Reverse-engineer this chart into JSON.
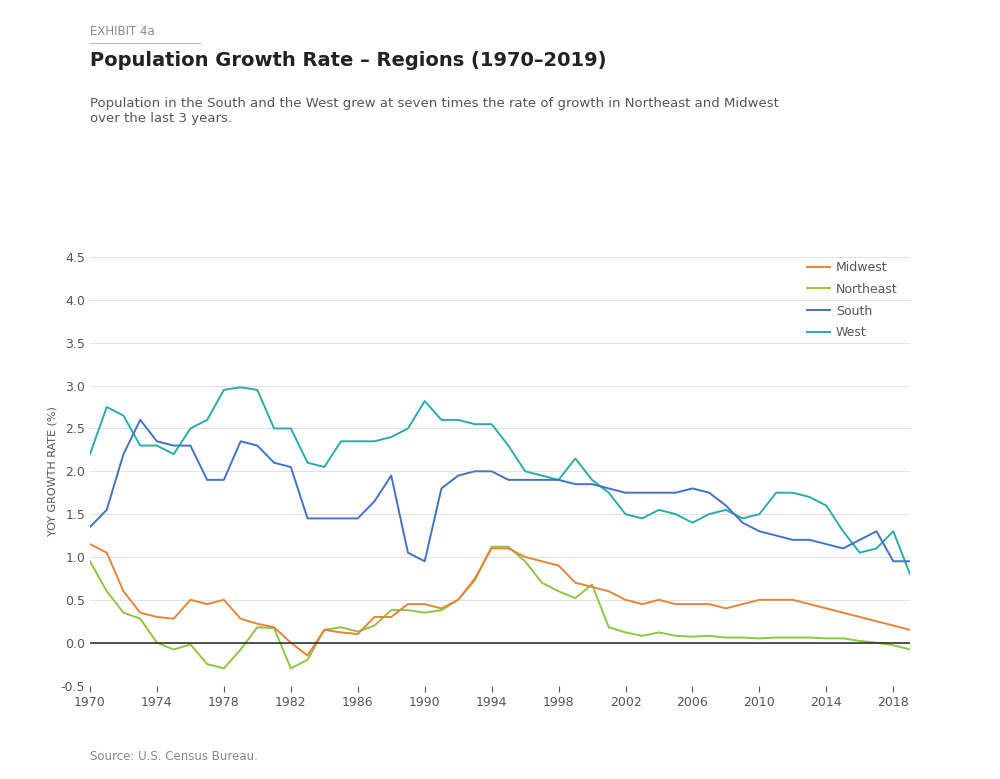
{
  "title": "Population Growth Rate – Regions (1970–2019)",
  "exhibit_label": "EXHIBIT 4a",
  "subtitle": "Population in the South and the West grew at seven times the rate of growth in Northeast and Midwest\nover the last 3 years.",
  "source": "Source: U.S. Census Bureau.",
  "ylabel": "YOY GROWTH RATE (%)",
  "ylim": [
    -0.5,
    4.5
  ],
  "yticks": [
    -0.5,
    0.0,
    0.5,
    1.0,
    1.5,
    2.0,
    2.5,
    3.0,
    3.5,
    4.0,
    4.5
  ],
  "xtick_years": [
    1970,
    1974,
    1978,
    1982,
    1986,
    1990,
    1994,
    1998,
    2002,
    2006,
    2010,
    2014,
    2018
  ],
  "background_color": "#ffffff",
  "years": [
    1970,
    1971,
    1972,
    1973,
    1974,
    1975,
    1976,
    1977,
    1978,
    1979,
    1980,
    1981,
    1982,
    1983,
    1984,
    1985,
    1986,
    1987,
    1988,
    1989,
    1990,
    1991,
    1992,
    1993,
    1994,
    1995,
    1996,
    1997,
    1998,
    1999,
    2000,
    2001,
    2002,
    2003,
    2004,
    2005,
    2006,
    2007,
    2008,
    2009,
    2010,
    2011,
    2012,
    2013,
    2014,
    2015,
    2016,
    2017,
    2018,
    2019
  ],
  "midwest": [
    1.15,
    1.05,
    0.6,
    0.35,
    0.3,
    0.28,
    0.5,
    0.45,
    0.5,
    0.28,
    0.22,
    0.18,
    0.0,
    -0.15,
    0.15,
    0.12,
    0.1,
    0.3,
    0.3,
    0.45,
    0.45,
    0.4,
    0.5,
    0.75,
    1.1,
    1.1,
    1.0,
    0.95,
    0.9,
    0.7,
    0.65,
    0.6,
    0.5,
    0.45,
    0.5,
    0.45,
    0.45,
    0.45,
    0.4,
    0.45,
    0.5,
    0.5,
    0.5,
    0.45,
    0.4,
    0.35,
    0.3,
    0.25,
    0.2,
    0.15
  ],
  "northeast": [
    0.95,
    0.6,
    0.35,
    0.28,
    0.0,
    -0.08,
    -0.02,
    -0.25,
    -0.3,
    -0.08,
    0.18,
    0.17,
    -0.3,
    -0.2,
    0.15,
    0.18,
    0.13,
    0.2,
    0.38,
    0.38,
    0.35,
    0.38,
    0.5,
    0.73,
    1.12,
    1.12,
    0.95,
    0.7,
    0.6,
    0.52,
    0.68,
    0.18,
    0.12,
    0.08,
    0.12,
    0.08,
    0.07,
    0.08,
    0.06,
    0.06,
    0.05,
    0.06,
    0.06,
    0.06,
    0.05,
    0.05,
    0.02,
    0.0,
    -0.03,
    -0.08
  ],
  "south": [
    1.35,
    1.55,
    2.2,
    2.6,
    2.35,
    2.3,
    2.3,
    1.9,
    1.9,
    2.35,
    2.3,
    2.1,
    2.05,
    1.45,
    1.45,
    1.45,
    1.45,
    1.65,
    1.95,
    1.05,
    0.95,
    1.8,
    1.95,
    2.0,
    2.0,
    1.9,
    1.9,
    1.9,
    1.9,
    1.85,
    1.85,
    1.8,
    1.75,
    1.75,
    1.75,
    1.75,
    1.8,
    1.75,
    1.6,
    1.4,
    1.3,
    1.25,
    1.2,
    1.2,
    1.15,
    1.1,
    1.2,
    1.3,
    0.95,
    0.95
  ],
  "west": [
    2.2,
    2.75,
    2.65,
    2.3,
    2.3,
    2.2,
    2.5,
    2.6,
    2.95,
    2.98,
    2.95,
    2.5,
    2.5,
    2.1,
    2.05,
    2.35,
    2.35,
    2.35,
    2.4,
    2.5,
    2.82,
    2.6,
    2.6,
    2.55,
    2.55,
    2.3,
    2.0,
    1.95,
    1.9,
    2.15,
    1.9,
    1.75,
    1.5,
    1.45,
    1.55,
    1.5,
    1.4,
    1.5,
    1.55,
    1.45,
    1.5,
    1.75,
    1.75,
    1.7,
    1.6,
    1.3,
    1.05,
    1.1,
    1.3,
    0.8
  ],
  "colors": {
    "midwest": "#E8833A",
    "northeast": "#8DC63F",
    "south": "#4472C4",
    "west": "#2AACAA"
  }
}
